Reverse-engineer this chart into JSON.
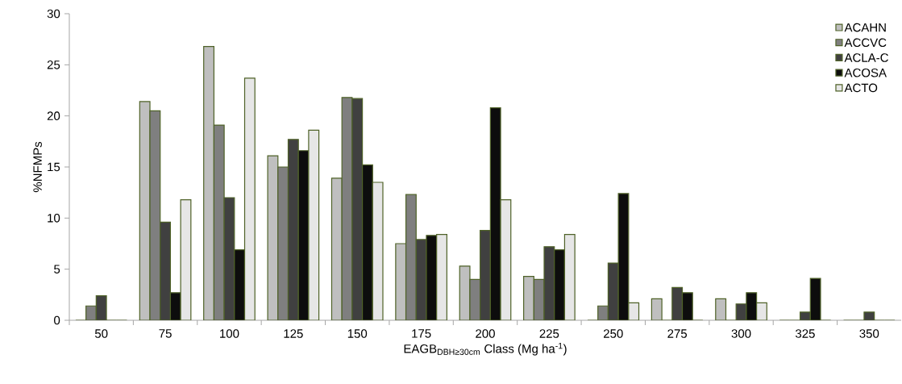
{
  "chart_data": {
    "type": "bar",
    "xlabel": "EAGB$_{DBH≥30cm}$ Class (Mg ha$^{-1}$)",
    "ylabel": "%NFMPs",
    "categories": [
      "50",
      "75",
      "100",
      "125",
      "150",
      "175",
      "200",
      "225",
      "250",
      "275",
      "300",
      "325",
      "350"
    ],
    "series": [
      {
        "name": "ACAHN",
        "color": "#bfbfbf",
        "values": [
          0,
          21.4,
          26.8,
          16.1,
          13.9,
          7.5,
          5.3,
          4.3,
          0,
          2.1,
          2.1,
          0,
          0
        ]
      },
      {
        "name": "ACCVC",
        "color": "#7f7f7f",
        "values": [
          1.4,
          20.5,
          19.1,
          15.0,
          21.8,
          12.3,
          4.0,
          4.0,
          1.4,
          0,
          0,
          0,
          0
        ]
      },
      {
        "name": "ACLA-C",
        "color": "#404040",
        "values": [
          2.4,
          9.6,
          12.0,
          17.7,
          21.7,
          7.9,
          8.8,
          7.2,
          5.6,
          3.2,
          1.6,
          0.8,
          0.8
        ]
      },
      {
        "name": "ACOSA",
        "color": "#0d0d0d",
        "values": [
          0,
          2.7,
          6.9,
          16.6,
          15.2,
          8.3,
          20.8,
          6.9,
          12.4,
          2.7,
          2.7,
          4.1,
          0
        ]
      },
      {
        "name": "ACTO",
        "color": "#e6e6e6",
        "values": [
          0,
          11.8,
          23.7,
          18.6,
          13.5,
          8.4,
          11.8,
          8.4,
          1.7,
          0,
          1.7,
          0,
          0
        ]
      }
    ],
    "ylim": [
      0,
      30
    ],
    "yticks": [
      0,
      5,
      10,
      15,
      20,
      25,
      30
    ],
    "grid": false,
    "legend": "top right"
  }
}
